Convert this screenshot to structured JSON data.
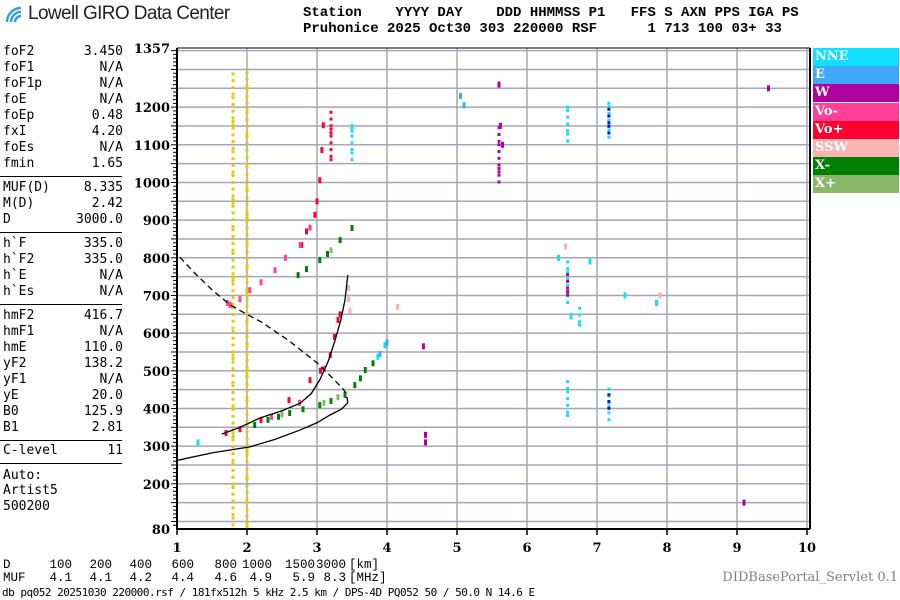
{
  "header": {
    "logo_text": "Lowell GIRO Data Center",
    "line1": "Station    YYYY DAY    DDD HHMMSS P1   FFS S AXN PPS IGA PS",
    "line2": "Pruhonice 2025 Oct30 303 220000 RSF      1 713 100 03+ 33"
  },
  "params": [
    {
      "k": "foF2",
      "v": "3.450"
    },
    {
      "k": "foF1",
      "v": "N/A"
    },
    {
      "k": "foF1p",
      "v": "N/A"
    },
    {
      "k": "foE",
      "v": "N/A"
    },
    {
      "k": "foEp",
      "v": "0.48"
    },
    {
      "k": "fxI",
      "v": "4.20"
    },
    {
      "k": "foEs",
      "v": "N/A"
    },
    {
      "k": "fmin",
      "v": "1.65"
    },
    {
      "k": "MUF(D)",
      "v": "8.335"
    },
    {
      "k": "M(D)",
      "v": "2.42"
    },
    {
      "k": "D",
      "v": "3000.0"
    },
    {
      "k": "h`F",
      "v": "335.0"
    },
    {
      "k": "h`F2",
      "v": "335.0"
    },
    {
      "k": "h`E",
      "v": "N/A"
    },
    {
      "k": "h`Es",
      "v": "N/A"
    },
    {
      "k": "hmF2",
      "v": "416.7"
    },
    {
      "k": "hmF1",
      "v": "N/A"
    },
    {
      "k": "hmE",
      "v": "110.0"
    },
    {
      "k": "yF2",
      "v": "138.2"
    },
    {
      "k": "yF1",
      "v": "N/A"
    },
    {
      "k": "yE",
      "v": "20.0"
    },
    {
      "k": "B0",
      "v": "125.9"
    },
    {
      "k": "B1",
      "v": "2.81"
    },
    {
      "k": "C-level",
      "v": "11"
    }
  ],
  "autoscaler": {
    "line1": "Auto:",
    "line2": "Artist5",
    "line3": "500200"
  },
  "legend": [
    {
      "label": "NNE",
      "color": "#10e0ff"
    },
    {
      "label": "E",
      "color": "#40a8f8"
    },
    {
      "label": "W",
      "color": "#b000a0"
    },
    {
      "label": "Vo-",
      "color": "#ff4098"
    },
    {
      "label": "Vo+",
      "color": "#ff0030"
    },
    {
      "label": "SSW",
      "color": "#f8b4b0"
    },
    {
      "label": "X-",
      "color": "#008000"
    },
    {
      "label": "X+",
      "color": "#88b868"
    }
  ],
  "muf_table": {
    "d_label": "D",
    "d_values": [
      "100",
      "200",
      "400",
      "600",
      "800",
      "1000",
      "1500",
      "3000"
    ],
    "d_unit": "[km]",
    "muf_label": "MUF",
    "muf_values": [
      "4.1",
      "4.1",
      "4.2",
      "4.4",
      "4.6",
      "4.9",
      "5.9",
      "8.3"
    ],
    "muf_unit": "[MHz]"
  },
  "footer": "db pq052 20251030 220000.rsf / 181fx512h 5 kHz 2.5 km / DPS-4D PQ052 50 / 50.0 N 14.6 E",
  "servlet": "DIDBasePortal_Servlet 0.1",
  "chart_data": {
    "type": "scatter",
    "xlim": [
      1,
      10
    ],
    "ylim": [
      80,
      1357
    ],
    "x_ticks": [
      "1",
      "2",
      "3",
      "4",
      "5",
      "6",
      "7",
      "8",
      "9",
      "10"
    ],
    "y_ticks": [
      "1357",
      "1200",
      "1100",
      "1000",
      "900",
      "800",
      "700",
      "600",
      "500",
      "400",
      "300",
      "200",
      "80"
    ],
    "grid": true,
    "legend_position": "right",
    "series": [
      {
        "name": "Vo+",
        "color": "#ff0030",
        "points": [
          [
            1.7,
            335
          ],
          [
            1.9,
            345
          ],
          [
            2.2,
            369
          ],
          [
            2.6,
            422
          ],
          [
            2.9,
            475
          ],
          [
            3.05,
            500
          ],
          [
            3.19,
            542
          ],
          [
            3.25,
            590
          ],
          [
            3.3,
            635
          ],
          [
            3.33,
            650
          ],
          [
            2.78,
            834
          ],
          [
            2.85,
            870
          ],
          [
            2.97,
            914
          ],
          [
            3.0,
            950
          ],
          [
            3.04,
            1006
          ],
          [
            3.07,
            1086
          ],
          [
            3.09,
            1152
          ]
        ]
      },
      {
        "name": "Vo-",
        "color": "#ff4098",
        "points": [
          [
            1.76,
            675
          ],
          [
            1.9,
            690
          ],
          [
            2.04,
            714
          ],
          [
            2.2,
            735
          ],
          [
            2.4,
            767
          ],
          [
            2.55,
            800
          ],
          [
            2.76,
            834
          ],
          [
            2.9,
            880
          ],
          [
            1.72,
            680
          ],
          [
            2.35,
            378
          ],
          [
            2.75,
            415
          ],
          [
            3.1,
            505
          ]
        ]
      },
      {
        "name": "X-",
        "color": "#008000",
        "points": [
          [
            2.11,
            356
          ],
          [
            2.3,
            370
          ],
          [
            2.45,
            378
          ],
          [
            2.61,
            388
          ],
          [
            2.8,
            398
          ],
          [
            3.04,
            409
          ],
          [
            3.2,
            420
          ],
          [
            3.4,
            436
          ],
          [
            3.54,
            462
          ],
          [
            3.62,
            480
          ],
          [
            3.69,
            502
          ],
          [
            3.8,
            520
          ],
          [
            2.73,
            754
          ],
          [
            2.85,
            770
          ],
          [
            3.04,
            794
          ],
          [
            3.15,
            810
          ],
          [
            3.33,
            847
          ],
          [
            3.5,
            879
          ]
        ]
      },
      {
        "name": "X+",
        "color": "#88b868",
        "points": [
          [
            2.5,
            384
          ],
          [
            3.1,
            415
          ],
          [
            3.3,
            430
          ],
          [
            3.2,
            820
          ]
        ]
      },
      {
        "name": "NNE",
        "color": "#10e0ff",
        "points": [
          [
            3.87,
            537
          ],
          [
            3.97,
            568
          ],
          [
            1.3,
            310
          ],
          [
            6.45,
            800
          ],
          [
            6.9,
            790
          ],
          [
            7.4,
            700
          ],
          [
            7.85,
            680
          ],
          [
            3.5,
            1140
          ]
        ]
      },
      {
        "name": "E",
        "color": "#40a8f8",
        "points": [
          [
            3.9,
            545
          ],
          [
            4.0,
            575
          ],
          [
            5.05,
            1230
          ],
          [
            5.1,
            1205
          ]
        ]
      },
      {
        "name": "W",
        "color": "#b000a0",
        "points": [
          [
            4.55,
            330
          ],
          [
            4.55,
            310
          ],
          [
            4.52,
            565
          ],
          [
            5.6,
            1260
          ],
          [
            5.62,
            1150
          ],
          [
            5.65,
            1100
          ],
          [
            9.45,
            1250
          ],
          [
            9.1,
            150
          ]
        ]
      },
      {
        "name": "SSW",
        "color": "#f8b4b0",
        "points": [
          [
            3.45,
            720
          ],
          [
            3.45,
            690
          ],
          [
            3.47,
            660
          ],
          [
            4.15,
            670
          ],
          [
            7.9,
            700
          ],
          [
            6.55,
            830
          ]
        ]
      }
    ],
    "vertical_streaks": [
      {
        "f": 1.8,
        "h": [
          90,
          1290
        ],
        "color": "#d8d000"
      },
      {
        "f": 2.0,
        "h": [
          85,
          1300
        ],
        "color": "#d8d000"
      },
      {
        "f": 6.58,
        "h": [
          680,
          800
        ],
        "color": "#10e0ff"
      },
      {
        "f": 6.58,
        "h": [
          700,
          760
        ],
        "color": "#b000a0"
      },
      {
        "f": 6.58,
        "h": [
          1100,
          1200
        ],
        "color": "#10e0ff"
      },
      {
        "f": 6.58,
        "h": [
          380,
          480
        ],
        "color": "#10e0ff"
      },
      {
        "f": 7.17,
        "h": [
          1110,
          1210
        ],
        "color": "#10e0ff"
      },
      {
        "f": 7.17,
        "h": [
          1130,
          1200
        ],
        "color": "#1010e0"
      },
      {
        "f": 7.17,
        "h": [
          360,
          460
        ],
        "color": "#10e0ff"
      },
      {
        "f": 7.17,
        "h": [
          390,
          450
        ],
        "color": "#1010e0"
      },
      {
        "f": 6.75,
        "h": [
          620,
          665
        ],
        "color": "#10e0ff"
      },
      {
        "f": 6.63,
        "h": [
          630,
          660
        ],
        "color": "#10e0ff"
      },
      {
        "f": 5.6,
        "h": [
          1000,
          1160
        ],
        "color": "#b000a0"
      },
      {
        "f": 3.2,
        "h": [
          1050,
          1200
        ],
        "color": "#ff0030"
      },
      {
        "f": 3.5,
        "h": [
          1050,
          1150
        ],
        "color": "#10e0ff"
      }
    ],
    "model_curves": [
      {
        "style": "solid",
        "points": [
          [
            1.64,
            332
          ],
          [
            1.9,
            350
          ],
          [
            2.19,
            375
          ],
          [
            2.5,
            394
          ],
          [
            2.76,
            414
          ],
          [
            2.92,
            440
          ],
          [
            3.04,
            476
          ],
          [
            3.16,
            525
          ],
          [
            3.26,
            582
          ],
          [
            3.34,
            635
          ],
          [
            3.4,
            688
          ],
          [
            3.44,
            754
          ]
        ]
      },
      {
        "style": "solid",
        "points": [
          [
            1.0,
            262
          ],
          [
            1.5,
            282
          ],
          [
            2.04,
            298
          ],
          [
            2.4,
            318
          ],
          [
            2.76,
            343
          ],
          [
            3.0,
            362
          ],
          [
            3.19,
            383
          ],
          [
            3.35,
            398
          ],
          [
            3.44,
            415
          ]
        ]
      },
      {
        "style": "dashed",
        "points": [
          [
            3.44,
            415
          ],
          [
            3.42,
            440
          ],
          [
            3.37,
            452
          ],
          [
            3.2,
            485
          ],
          [
            3.0,
            521
          ],
          [
            2.6,
            580
          ],
          [
            2.2,
            630
          ],
          [
            1.9,
            660
          ],
          [
            1.76,
            675
          ],
          [
            1.5,
            715
          ],
          [
            1.25,
            760
          ],
          [
            1.04,
            802
          ]
        ]
      }
    ]
  }
}
